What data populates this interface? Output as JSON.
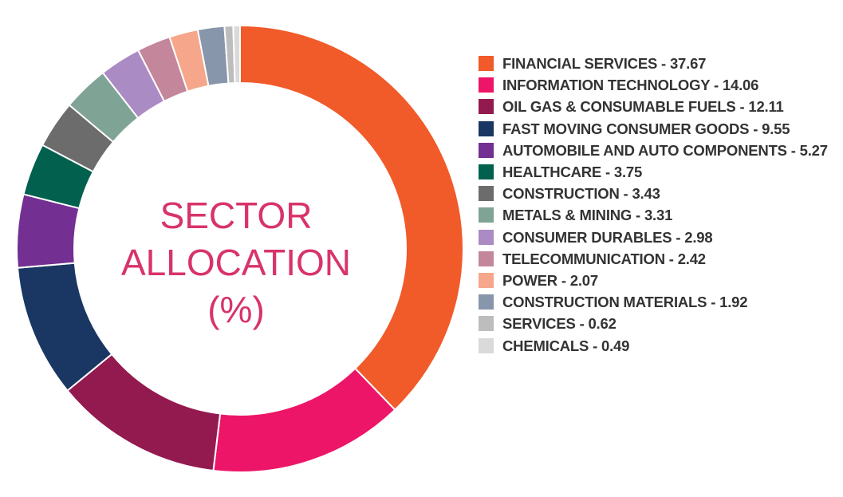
{
  "chart_data": {
    "type": "pie",
    "title_lines": [
      "SECTOR",
      "ALLOCATION",
      "(%)"
    ],
    "legend_position": "right",
    "slices": [
      {
        "label": "FINANCIAL SERVICES",
        "value": 37.67,
        "color": "#f15a29"
      },
      {
        "label": "INFORMATION TECHNOLOGY",
        "value": 14.06,
        "color": "#ed1568"
      },
      {
        "label": "OIL GAS & CONSUMABLE FUELS",
        "value": 12.11,
        "color": "#931a4f"
      },
      {
        "label": "FAST MOVING CONSUMER GOODS",
        "value": 9.55,
        "color": "#1a3763"
      },
      {
        "label": "AUTOMOBILE AND AUTO COMPONENTS",
        "value": 5.27,
        "color": "#732f91"
      },
      {
        "label": "HEALTHCARE",
        "value": 3.75,
        "color": "#02604f"
      },
      {
        "label": "CONSTRUCTION",
        "value": 3.43,
        "color": "#6c6c6c"
      },
      {
        "label": "METALS & MINING",
        "value": 3.31,
        "color": "#7fa394"
      },
      {
        "label": "CONSUMER DURABLES",
        "value": 2.98,
        "color": "#ab8bc4"
      },
      {
        "label": "TELECOMMUNICATION",
        "value": 2.42,
        "color": "#c4869b"
      },
      {
        "label": "POWER",
        "value": 2.07,
        "color": "#f6a68a"
      },
      {
        "label": "CONSTRUCTION MATERIALS",
        "value": 1.92,
        "color": "#8796ab"
      },
      {
        "label": "SERVICES",
        "value": 0.62,
        "color": "#bdbdbd"
      },
      {
        "label": "CHEMICALS",
        "value": 0.49,
        "color": "#dadada"
      }
    ]
  }
}
